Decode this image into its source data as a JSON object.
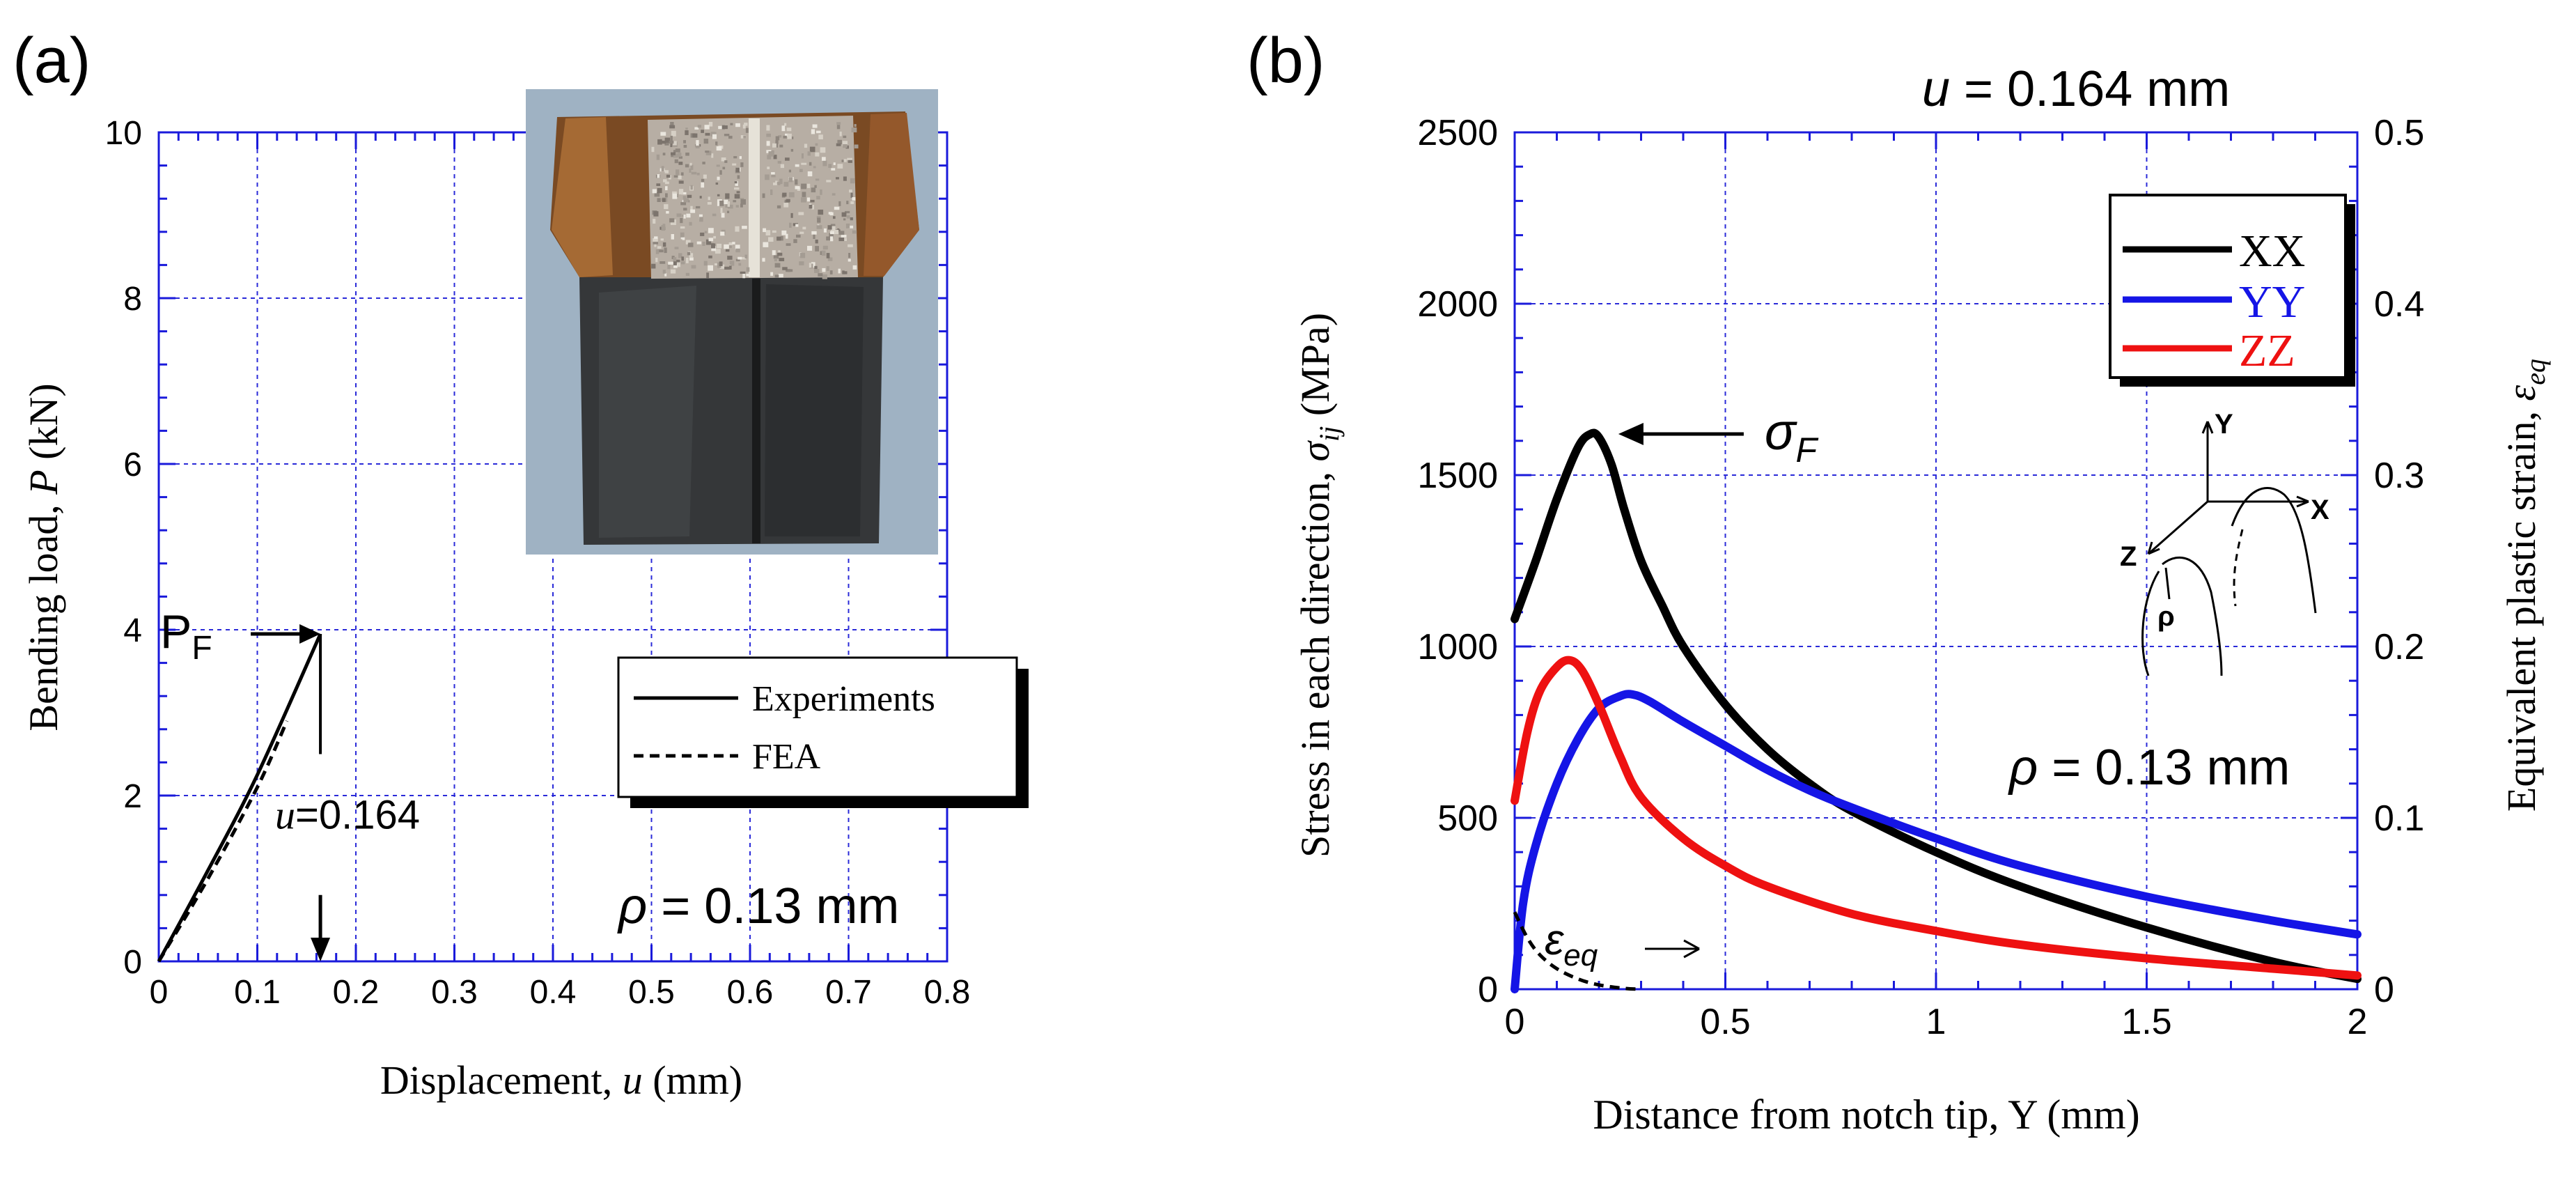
{
  "panels": {
    "a": {
      "label": "(a)"
    },
    "b": {
      "label": "(b)"
    }
  },
  "colors": {
    "axis_blue": "#1a1adb",
    "grid_blue": "#2a2ad8",
    "black": "#000000",
    "yy_blue": "#1515e6",
    "zz_red": "#ee1111"
  },
  "icons": {
    "photo": "fractured-specimen-photo",
    "schematic": "notch-coordinate-schematic"
  },
  "chart_data": [
    {
      "id": "a",
      "type": "line",
      "title": "",
      "xlabel_prefix": "Displacement, ",
      "xlabel_var": "u",
      "xlabel_unit": " (mm)",
      "ylabel_prefix": "Bending load, ",
      "ylabel_var": "P",
      "ylabel_unit": " (kN)",
      "xlim": [
        0,
        0.8
      ],
      "ylim": [
        0,
        10
      ],
      "xticks": [
        0,
        0.1,
        0.2,
        0.3,
        0.4,
        0.5,
        0.6,
        0.7,
        0.8
      ],
      "xtick_labels": [
        "0",
        "0.1",
        "0.2",
        "0.3",
        "0.4",
        "0.5",
        "0.6",
        "0.7",
        "0.8"
      ],
      "yticks": [
        0,
        2,
        4,
        6,
        8,
        10
      ],
      "ytick_labels": [
        "0",
        "2",
        "4",
        "6",
        "8",
        "10"
      ],
      "grid": true,
      "legend": {
        "position": "right",
        "entries": [
          {
            "name": "Experiments",
            "style": "solid"
          },
          {
            "name": "FEA",
            "style": "dashed"
          }
        ]
      },
      "series": [
        {
          "name": "Experiments",
          "style": "solid",
          "x": [
            0,
            0.05,
            0.1,
            0.164
          ],
          "y": [
            0,
            1.1,
            2.25,
            3.95
          ]
        },
        {
          "name": "FEA",
          "style": "dashed",
          "x": [
            0,
            0.05,
            0.1,
            0.13
          ],
          "y": [
            0,
            1.0,
            2.1,
            2.9
          ]
        }
      ],
      "annotations": {
        "pf_label_main": "P",
        "pf_label_sub": "F",
        "pf_value": 3.95,
        "u_var": "u",
        "u_text": "=0.164",
        "u_value": 0.164,
        "rho_symbol": "ρ",
        "rho_text": " = 0.13 mm"
      }
    },
    {
      "id": "b",
      "type": "line",
      "title_var": "u",
      "title_text": " = 0.164 mm",
      "xlabel": "Distance from notch tip, Y (mm)",
      "ylabel_prefix": "Stress in each direction, ",
      "ylabel_sym": "σ",
      "ylabel_sub": "ij",
      "ylabel_unit": " (MPa)",
      "y2label_prefix": "Equivalent plastic strain, ",
      "y2label_sym": "ε",
      "y2label_sub": "eq",
      "xlim": [
        0,
        2
      ],
      "ylim": [
        0,
        2500
      ],
      "y2lim": [
        0,
        0.5
      ],
      "xticks": [
        0,
        0.5,
        1,
        1.5,
        2
      ],
      "xtick_labels": [
        "0",
        "0.5",
        "1",
        "1.5",
        "2"
      ],
      "yticks": [
        0,
        500,
        1000,
        1500,
        2000,
        2500
      ],
      "ytick_labels": [
        "0",
        "500",
        "1000",
        "1500",
        "2000",
        "2500"
      ],
      "y2ticks": [
        0,
        0.1,
        0.2,
        0.3,
        0.4,
        0.5
      ],
      "y2tick_labels": [
        "0",
        "0.1",
        "0.2",
        "0.3",
        "0.4",
        "0.5"
      ],
      "grid": true,
      "legend": {
        "position": "top-right",
        "entries": [
          {
            "name": "XX",
            "color": "#000000"
          },
          {
            "name": "YY",
            "color": "#1515e6"
          },
          {
            "name": "ZZ",
            "color": "#ee1111"
          }
        ]
      },
      "series": [
        {
          "name": "XX",
          "color": "#000000",
          "axis": "left",
          "x": [
            0,
            0.05,
            0.1,
            0.15,
            0.18,
            0.2,
            0.23,
            0.26,
            0.3,
            0.35,
            0.4,
            0.5,
            0.6,
            0.7,
            0.8,
            1.0,
            1.2,
            1.5,
            1.8,
            2.0
          ],
          "y": [
            1080,
            1250,
            1430,
            1580,
            1620,
            1610,
            1530,
            1400,
            1250,
            1120,
            1000,
            830,
            700,
            600,
            520,
            400,
            300,
            180,
            80,
            30
          ]
        },
        {
          "name": "YY",
          "color": "#1515e6",
          "axis": "left",
          "x": [
            0,
            0.02,
            0.05,
            0.1,
            0.15,
            0.2,
            0.25,
            0.28,
            0.32,
            0.4,
            0.5,
            0.6,
            0.7,
            0.8,
            1.0,
            1.2,
            1.5,
            1.8,
            2.0
          ],
          "y": [
            0,
            250,
            420,
            600,
            730,
            820,
            855,
            860,
            840,
            780,
            710,
            640,
            580,
            530,
            440,
            360,
            270,
            200,
            160
          ]
        },
        {
          "name": "ZZ",
          "color": "#ee1111",
          "axis": "left",
          "x": [
            0,
            0.03,
            0.06,
            0.1,
            0.13,
            0.16,
            0.2,
            0.25,
            0.3,
            0.4,
            0.5,
            0.6,
            0.8,
            1.0,
            1.2,
            1.5,
            1.8,
            2.0
          ],
          "y": [
            550,
            750,
            870,
            940,
            960,
            930,
            830,
            680,
            560,
            440,
            360,
            300,
            220,
            170,
            130,
            90,
            60,
            40
          ]
        },
        {
          "name": "εeq",
          "color": "#000000",
          "style": "dashed",
          "axis": "right",
          "x": [
            0,
            0.03,
            0.06,
            0.1,
            0.15,
            0.2,
            0.26,
            0.3
          ],
          "y": [
            0.045,
            0.03,
            0.02,
            0.012,
            0.006,
            0.0025,
            0.0005,
            0
          ]
        }
      ],
      "annotations": {
        "sigma_f_sym": "σ",
        "sigma_f_sub": "F",
        "sigma_f_x": 0.18,
        "sigma_f_y": 1620,
        "eps_sym": "ε",
        "eps_sub": "eq",
        "rho_symbol": "ρ",
        "rho_text": " = 0.13 mm",
        "schematic_labels": {
          "y": "Y",
          "x": "X",
          "z": "Z",
          "rho": "ρ"
        }
      }
    }
  ]
}
